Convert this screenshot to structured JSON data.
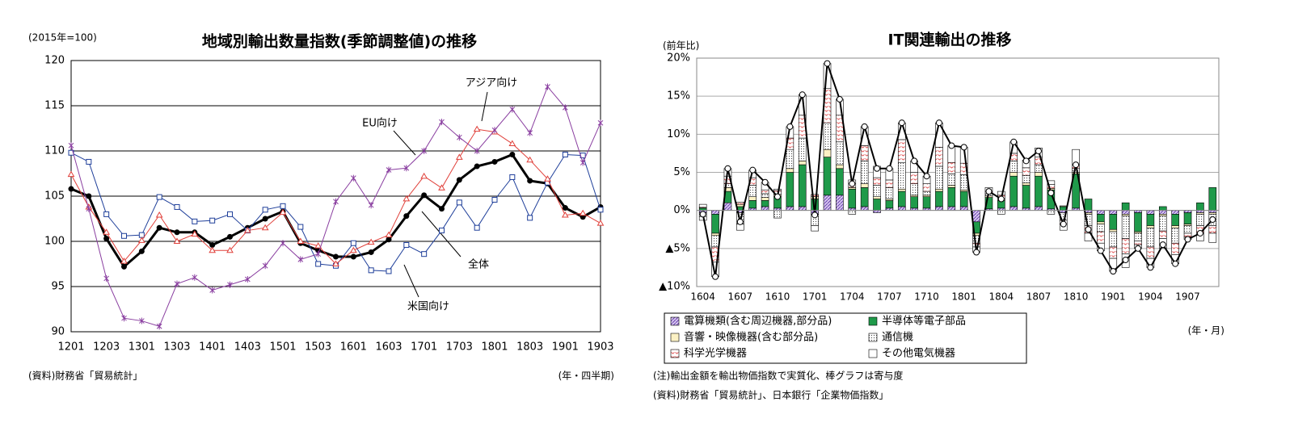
{
  "chart_data": [
    {
      "type": "line",
      "title": "地域別輸出数量指数(季節調整値)の推移",
      "unit_label": "(2015年=100)",
      "x_label": "(年・四半期)",
      "source": "(資料)財務省「貿易統計」",
      "categories": [
        "1201",
        null,
        "1203",
        null,
        "1301",
        null,
        "1303",
        null,
        "1401",
        null,
        "1403",
        null,
        "1501",
        null,
        "1503",
        null,
        "1601",
        null,
        "1603",
        null,
        "1701",
        null,
        "1703",
        null,
        "1801",
        null,
        "1803",
        null,
        "1901",
        null,
        "1903"
      ],
      "ylim": [
        90,
        120
      ],
      "yticks": [
        90,
        95,
        100,
        105,
        110,
        115,
        120
      ],
      "grid": true,
      "series": [
        {
          "name": "全体",
          "color": "#000000",
          "marker": "filled-circle",
          "values": [
            105.8,
            105.0,
            100.3,
            97.2,
            98.9,
            101.5,
            101.0,
            101.0,
            99.6,
            100.5,
            101.5,
            102.5,
            103.3,
            99.8,
            99.0,
            98.3,
            98.3,
            98.8,
            100.2,
            102.8,
            105.1,
            103.6,
            106.8,
            108.3,
            108.8,
            109.6,
            106.7,
            106.4,
            103.7,
            102.7,
            103.8
          ]
        },
        {
          "name": "米国向け",
          "color": "#1f3f9a",
          "marker": "open-square",
          "values": [
            109.8,
            108.8,
            103.0,
            100.6,
            100.7,
            104.9,
            103.8,
            102.2,
            102.3,
            103.0,
            101.2,
            103.5,
            103.9,
            101.6,
            97.5,
            97.3,
            99.8,
            96.8,
            96.7,
            99.6,
            98.6,
            101.2,
            104.3,
            101.5,
            104.6,
            107.1,
            102.6,
            106.5,
            109.6,
            109.5,
            103.5
          ]
        },
        {
          "name": "アジア向け",
          "color": "#e0403a",
          "marker": "open-triangle",
          "values": [
            107.4,
            103.8,
            101.0,
            97.8,
            100.1,
            102.9,
            100.0,
            100.8,
            99.0,
            99.0,
            101.2,
            101.5,
            103.2,
            100.0,
            99.5,
            97.5,
            99.0,
            99.9,
            100.7,
            104.7,
            107.2,
            105.9,
            109.3,
            112.4,
            112.1,
            110.8,
            109.0,
            106.9,
            102.9,
            103.1,
            102.0
          ]
        },
        {
          "name": "EU向け",
          "color": "#8a3fa0",
          "marker": "cross",
          "values": [
            110.6,
            103.6,
            95.9,
            91.5,
            91.2,
            90.6,
            95.3,
            96.0,
            94.6,
            95.2,
            95.8,
            97.3,
            99.8,
            98.0,
            98.6,
            104.4,
            107.0,
            104.0,
            107.9,
            108.1,
            110.0,
            113.2,
            111.5,
            110.0,
            112.3,
            114.6,
            112.0,
            117.1,
            114.8,
            108.7,
            113.1
          ]
        }
      ]
    },
    {
      "type": "bar",
      "stacked": true,
      "title": "IT関連輸出の推移",
      "unit_label": "(前年比)",
      "x_label": "(年・月)",
      "notes": [
        "(注)輸出金額を輸出物価指数で実質化、棒グラフは寄与度",
        "(資料)財務省「貿易統計」、日本銀行「企業物価指数」"
      ],
      "categories": [
        "1604",
        null,
        null,
        "1607",
        null,
        null,
        "1610",
        null,
        null,
        "1701",
        null,
        null,
        "1704",
        null,
        null,
        "1707",
        null,
        null,
        "1710",
        null,
        null,
        "1801",
        null,
        null,
        "1804",
        null,
        null,
        "1807",
        null,
        null,
        "1810",
        null,
        null,
        "1901",
        null,
        null,
        "1904",
        null,
        null,
        "1907",
        null,
        null
      ],
      "ylim": [
        -10,
        20
      ],
      "yticks": [
        {
          "value": -10,
          "label": "▲10%"
        },
        {
          "value": -5,
          "label": "▲5%"
        },
        {
          "value": 0,
          "label": "0%"
        },
        {
          "value": 5,
          "label": "5%"
        },
        {
          "value": 10,
          "label": "10%"
        },
        {
          "value": 15,
          "label": "15%"
        },
        {
          "value": 20,
          "label": "20%"
        }
      ],
      "grid": true,
      "series": [
        {
          "name": "電算機類(含む周辺機器,部分品)",
          "color": "#7b52b8",
          "pattern": "hatch",
          "values": [
            -0.3,
            -0.5,
            1.0,
            -0.3,
            0.3,
            0.5,
            0.3,
            0.5,
            0.5,
            -0.5,
            2.0,
            2.0,
            0.3,
            0.5,
            -0.3,
            0.3,
            0.5,
            0.3,
            0.3,
            0.5,
            0.5,
            0.5,
            -1.5,
            0.2,
            0.3,
            0.5,
            0.3,
            0.5,
            0.2,
            -0.3,
            0.3,
            -0.3,
            -0.5,
            -0.5,
            -0.5,
            -0.3,
            -0.5,
            -0.5,
            -0.5,
            -0.3,
            -0.3,
            -0.3
          ]
        },
        {
          "name": "半導体等電子部品",
          "color": "#1f9a4a",
          "pattern": "solid",
          "values": [
            0.3,
            -2.5,
            1.5,
            0.5,
            1.0,
            0.8,
            1.5,
            4.5,
            5.5,
            1.5,
            5.0,
            3.5,
            2.5,
            2.5,
            1.5,
            1.0,
            2.0,
            1.5,
            1.5,
            2.0,
            2.5,
            2.0,
            -1.5,
            1.5,
            1.0,
            4.0,
            3.0,
            4.0,
            2.5,
            0.5,
            4.5,
            1.5,
            -1.0,
            -2.0,
            1.0,
            -2.5,
            -1.5,
            0.5,
            -1.5,
            -1.5,
            1.0,
            3.0
          ]
        },
        {
          "name": "音響・映像機器(含む部分品)",
          "color": "#fbf1c4",
          "pattern": "solid",
          "values": [
            0.1,
            -0.3,
            0.5,
            0.3,
            0.5,
            0.4,
            0.3,
            0.5,
            0.5,
            0.3,
            1.0,
            0.5,
            0.2,
            0.5,
            0.3,
            0.2,
            0.3,
            0.2,
            0.2,
            0.3,
            0.3,
            0.2,
            -0.3,
            0.2,
            0.2,
            0.5,
            0.3,
            0.5,
            0.2,
            0.1,
            0.2,
            -0.2,
            -0.3,
            -0.3,
            -0.2,
            -0.2,
            -0.3,
            -0.2,
            -0.3,
            -0.2,
            -0.2,
            -0.2
          ]
        },
        {
          "name": "通信機",
          "color": "#555555",
          "pattern": "dots",
          "values": [
            -0.5,
            -1.5,
            0.5,
            -1.5,
            1.5,
            0.5,
            -1.0,
            2.5,
            3.0,
            -1.5,
            3.5,
            3.0,
            -0.5,
            3.0,
            1.5,
            1.5,
            3.5,
            1.5,
            0.5,
            3.0,
            1.5,
            2.0,
            -1.0,
            0.3,
            -0.5,
            1.5,
            1.0,
            1.0,
            -0.5,
            -1.0,
            0.5,
            -1.5,
            -1.0,
            -2.0,
            -3.0,
            -1.0,
            -2.5,
            -2.0,
            -2.0,
            -1.0,
            -1.5,
            -1.5
          ]
        },
        {
          "name": "科学光学機器",
          "color": "#e05050",
          "pattern": "red-marks",
          "values": [
            0.4,
            -2.0,
            1.0,
            0.3,
            1.0,
            0.5,
            0.5,
            1.5,
            3.0,
            0.3,
            4.5,
            3.5,
            0.5,
            2.0,
            1.0,
            1.0,
            3.0,
            1.5,
            1.0,
            2.5,
            1.5,
            1.5,
            -0.5,
            0.3,
            0.5,
            1.0,
            1.0,
            1.0,
            0.5,
            -0.5,
            0.5,
            -1.0,
            -1.5,
            -1.5,
            -2.0,
            -0.5,
            -1.5,
            -1.0,
            -1.5,
            -0.5,
            -1.0,
            -1.0
          ]
        },
        {
          "name": "その他電気機器",
          "color": "#ffffff",
          "pattern": "solid",
          "values": [
            -0.5,
            -1.9,
            1.0,
            -0.8,
            1.0,
            1.0,
            0.2,
            1.5,
            2.7,
            -0.7,
            3.3,
            2.1,
            0.5,
            2.5,
            1.5,
            1.5,
            2.2,
            1.5,
            1.0,
            3.2,
            2.2,
            2.1,
            -0.7,
            0.5,
            0.5,
            1.5,
            1.0,
            1.2,
            0.5,
            -0.8,
            2.0,
            -1.0,
            -1.0,
            -1.7,
            -1.8,
            -0.5,
            -1.2,
            -1.3,
            -1.2,
            -0.3,
            -1.0,
            -1.2
          ]
        }
      ],
      "total": [
        -0.5,
        -8.7,
        5.5,
        -1.5,
        5.3,
        3.7,
        1.8,
        11.0,
        15.2,
        -0.6,
        19.3,
        14.6,
        3.5,
        11.0,
        5.5,
        5.5,
        11.5,
        6.5,
        4.5,
        11.5,
        8.5,
        8.3,
        -5.5,
        2.5,
        1.5,
        9.0,
        6.5,
        7.8,
        2.3,
        -1.8,
        6.0,
        -2.5,
        -5.3,
        -8.0,
        -6.5,
        -5.0,
        -7.5,
        -4.5,
        -7.0,
        -3.8,
        -3.0,
        -1.2
      ],
      "total_color": "#000000"
    }
  ]
}
